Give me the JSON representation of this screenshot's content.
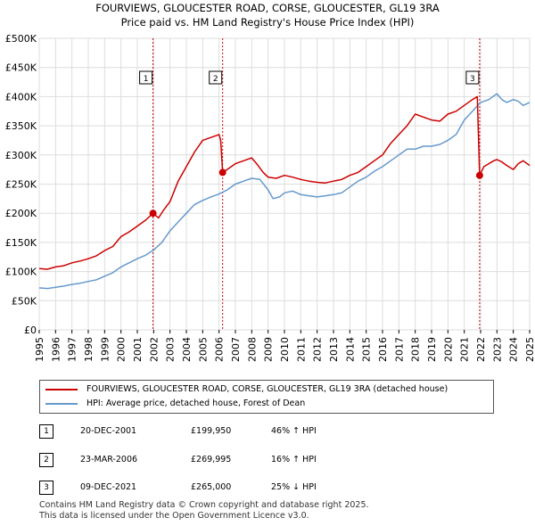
{
  "title": {
    "line1": "FOURVIEWS, GLOUCESTER ROAD, CORSE, GLOUCESTER, GL19 3RA",
    "line2": "Price paid vs. HM Land Registry's House Price Index (HPI)"
  },
  "colors": {
    "property": "#cc0000",
    "hpi": "#6699cc",
    "vline": "#cc0000"
  },
  "legend": {
    "property_label": "FOURVIEWS, GLOUCESTER ROAD, CORSE, GLOUCESTER, GL19 3RA (detached house)",
    "hpi_label": "HPI: Average price, detached house, Forest of Dean"
  },
  "transactions": [
    {
      "num": "1",
      "date": "20-DEC-2001",
      "price": "£199,950",
      "hpi": "46% ↑ HPI"
    },
    {
      "num": "2",
      "date": "23-MAR-2006",
      "price": "£269,995",
      "hpi": "16% ↑ HPI"
    },
    {
      "num": "3",
      "date": "09-DEC-2021",
      "price": "£265,000",
      "hpi": "25% ↓ HPI"
    }
  ],
  "footer": {
    "line1": "Contains HM Land Registry data © Crown copyright and database right 2025.",
    "line2": "This data is licensed under the Open Government Licence v3.0."
  },
  "chart_data": {
    "type": "line",
    "title": "Price paid vs. HM Land Registry's House Price Index (HPI)",
    "xlabel": "",
    "ylabel": "",
    "xlim": [
      1995,
      2025
    ],
    "ylim": [
      0,
      500000
    ],
    "grid": true,
    "x_ticks": [
      "1995",
      "1996",
      "1997",
      "1998",
      "1999",
      "2000",
      "2001",
      "2002",
      "2003",
      "2004",
      "2005",
      "2006",
      "2007",
      "2008",
      "2009",
      "2010",
      "2011",
      "2012",
      "2013",
      "2014",
      "2015",
      "2016",
      "2017",
      "2018",
      "2019",
      "2020",
      "2021",
      "2022",
      "2023",
      "2024",
      "2025"
    ],
    "y_ticks": [
      {
        "value": 0,
        "label": "£0"
      },
      {
        "value": 50000,
        "label": "£50K"
      },
      {
        "value": 100000,
        "label": "£100K"
      },
      {
        "value": 150000,
        "label": "£150K"
      },
      {
        "value": 200000,
        "label": "£200K"
      },
      {
        "value": 250000,
        "label": "£250K"
      },
      {
        "value": 300000,
        "label": "£300K"
      },
      {
        "value": 350000,
        "label": "£350K"
      },
      {
        "value": 400000,
        "label": "£400K"
      },
      {
        "value": 450000,
        "label": "£450K"
      },
      {
        "value": 500000,
        "label": "£500K"
      }
    ],
    "series": [
      {
        "name": "FOURVIEWS, GLOUCESTER ROAD, CORSE, GLOUCESTER, GL19 3RA (detached house)",
        "color": "#cc0000",
        "x": [
          1995.0,
          1995.5,
          1996.0,
          1996.5,
          1997.0,
          1997.5,
          1998.0,
          1998.5,
          1999.0,
          1999.5,
          2000.0,
          2000.5,
          2001.0,
          2001.5,
          2001.96,
          2002.3,
          2002.6,
          2003.0,
          2003.5,
          2004.0,
          2004.5,
          2005.0,
          2005.5,
          2006.0,
          2006.1,
          2006.22,
          2006.5,
          2007.0,
          2007.5,
          2008.0,
          2008.3,
          2008.7,
          2009.0,
          2009.5,
          2010.0,
          2010.5,
          2011.0,
          2011.5,
          2012.0,
          2012.5,
          2013.0,
          2013.5,
          2014.0,
          2014.5,
          2015.0,
          2015.5,
          2016.0,
          2016.5,
          2017.0,
          2017.5,
          2018.0,
          2018.5,
          2019.0,
          2019.5,
          2020.0,
          2020.5,
          2021.0,
          2021.5,
          2021.8,
          2021.94,
          2022.2,
          2022.5,
          2022.8,
          2023.0,
          2023.3,
          2023.6,
          2024.0,
          2024.3,
          2024.6,
          2025.0
        ],
        "y": [
          105000,
          104000,
          108000,
          110000,
          115000,
          118000,
          122000,
          127000,
          136000,
          143000,
          160000,
          168000,
          178000,
          188000,
          199950,
          192000,
          205000,
          220000,
          255000,
          280000,
          305000,
          325000,
          330000,
          335000,
          325000,
          269995,
          275000,
          285000,
          290000,
          295000,
          285000,
          270000,
          262000,
          260000,
          265000,
          262000,
          258000,
          255000,
          253000,
          252000,
          255000,
          258000,
          265000,
          270000,
          280000,
          290000,
          300000,
          320000,
          335000,
          350000,
          370000,
          365000,
          360000,
          358000,
          370000,
          375000,
          385000,
          395000,
          400000,
          265000,
          280000,
          285000,
          290000,
          292000,
          288000,
          282000,
          275000,
          285000,
          290000,
          282000
        ]
      },
      {
        "name": "HPI: Average price, detached house, Forest of Dean",
        "color": "#6699cc",
        "x": [
          1995.0,
          1995.5,
          1996.0,
          1996.5,
          1997.0,
          1997.5,
          1998.0,
          1998.5,
          1999.0,
          1999.5,
          2000.0,
          2000.5,
          2001.0,
          2001.5,
          2002.0,
          2002.5,
          2003.0,
          2003.5,
          2004.0,
          2004.5,
          2005.0,
          2005.5,
          2006.0,
          2006.5,
          2007.0,
          2007.5,
          2008.0,
          2008.5,
          2009.0,
          2009.3,
          2009.7,
          2010.0,
          2010.5,
          2011.0,
          2011.5,
          2012.0,
          2012.5,
          2013.0,
          2013.5,
          2014.0,
          2014.5,
          2015.0,
          2015.5,
          2016.0,
          2016.5,
          2017.0,
          2017.5,
          2018.0,
          2018.5,
          2019.0,
          2019.5,
          2020.0,
          2020.5,
          2021.0,
          2021.5,
          2022.0,
          2022.5,
          2023.0,
          2023.3,
          2023.6,
          2024.0,
          2024.3,
          2024.6,
          2025.0
        ],
        "y": [
          72000,
          71000,
          73000,
          75000,
          78000,
          80000,
          83000,
          86000,
          92000,
          98000,
          108000,
          115000,
          122000,
          128000,
          137000,
          150000,
          170000,
          185000,
          200000,
          215000,
          222000,
          228000,
          233000,
          240000,
          250000,
          255000,
          260000,
          258000,
          240000,
          225000,
          228000,
          235000,
          238000,
          232000,
          230000,
          228000,
          230000,
          232000,
          235000,
          245000,
          255000,
          262000,
          272000,
          280000,
          290000,
          300000,
          310000,
          310000,
          315000,
          315000,
          318000,
          325000,
          335000,
          360000,
          375000,
          390000,
          395000,
          405000,
          395000,
          390000,
          395000,
          392000,
          385000,
          390000
        ]
      }
    ],
    "markers": [
      {
        "num": "1",
        "x": 2001.96,
        "y": 199950
      },
      {
        "num": "2",
        "x": 2006.22,
        "y": 269995
      },
      {
        "num": "3",
        "x": 2021.94,
        "y": 265000
      }
    ]
  }
}
